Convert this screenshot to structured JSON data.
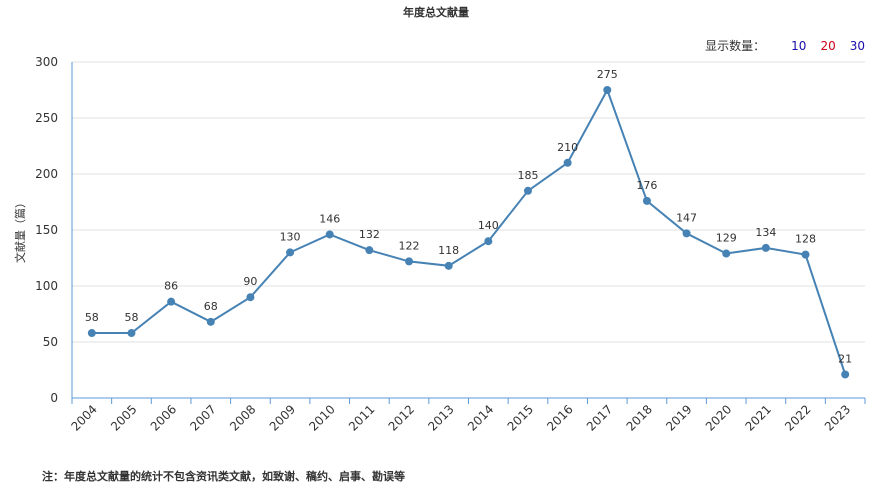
{
  "chart_data": {
    "type": "line",
    "title": "年度总文献量",
    "ylabel": "文献量（篇）",
    "xlabel": "",
    "x": [
      "2004",
      "2005",
      "2006",
      "2007",
      "2008",
      "2009",
      "2010",
      "2011",
      "2012",
      "2013",
      "2014",
      "2015",
      "2016",
      "2017",
      "2018",
      "2019",
      "2020",
      "2021",
      "2022",
      "2023"
    ],
    "values": [
      58,
      58,
      86,
      68,
      90,
      130,
      146,
      132,
      122,
      118,
      140,
      185,
      210,
      275,
      176,
      147,
      129,
      134,
      128,
      21
    ],
    "ylim": [
      0,
      300
    ],
    "yticks": [
      0,
      50,
      100,
      150,
      200,
      250,
      300
    ],
    "grid": true,
    "line_color": "#4682b4"
  },
  "display_count": {
    "label": "显示数量：",
    "options": [
      {
        "label": "10",
        "color": "#1a0dab"
      },
      {
        "label": "20",
        "color": "#d0021b"
      },
      {
        "label": "30",
        "color": "#1a0dab"
      }
    ]
  },
  "footnote": "注：年度总文献量的统计不包含资讯类文献，如致谢、稿约、启事、勘误等"
}
